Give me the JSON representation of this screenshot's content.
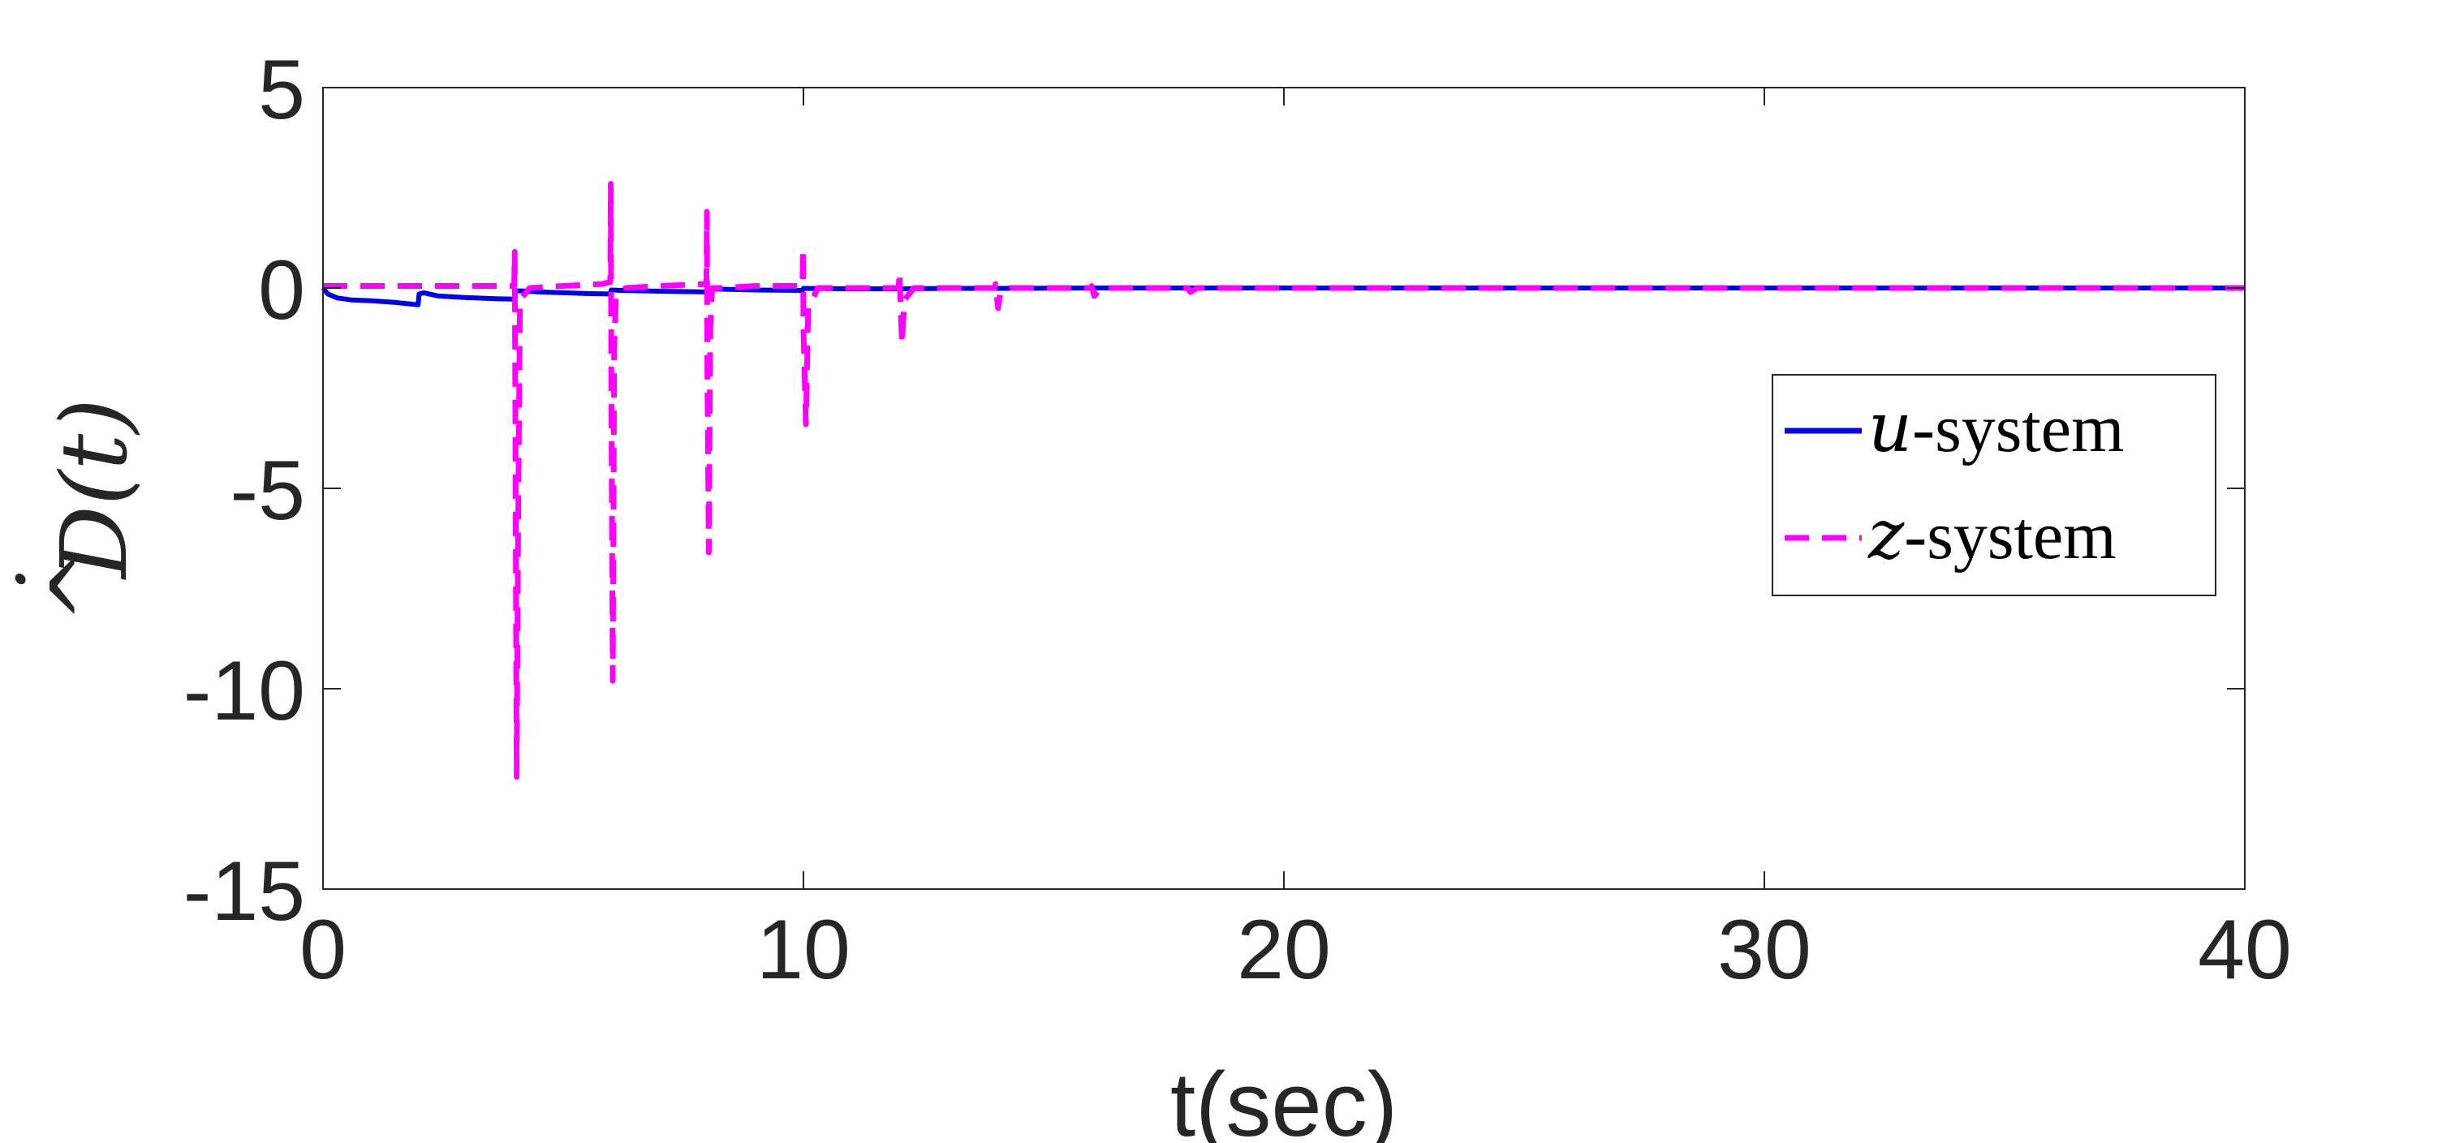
{
  "chart_data": {
    "type": "line",
    "xlabel": "t(sec)",
    "ylabel": "D̂(t)",
    "ylabel_parts": {
      "var": "D",
      "hat": "^",
      "dot": "˙",
      "arg": "(t)"
    },
    "xlim": [
      0,
      40
    ],
    "ylim": [
      -15,
      5
    ],
    "xticks": [
      0,
      10,
      20,
      30,
      40
    ],
    "xtick_labels": [
      "0",
      "10",
      "20",
      "30",
      "40"
    ],
    "yticks": [
      5,
      0,
      -5,
      -10,
      -15
    ],
    "ytick_labels": [
      "5",
      "0",
      "-5",
      "-10",
      "-15"
    ],
    "grid": false,
    "legend_position": "right",
    "series": [
      {
        "name": "u-system",
        "legend_var": "u",
        "legend_suffix": "-system",
        "color": "#0000ee",
        "dash": "solid",
        "x": [
          0,
          0.1,
          0.3,
          0.6,
          1.0,
          1.5,
          1.98,
          2.0,
          2.1,
          2.4,
          3.0,
          3.6,
          3.98,
          4.0,
          4.1,
          4.5,
          5.0,
          5.5,
          5.98,
          6.0,
          6.2,
          7.0,
          7.98,
          8.0,
          8.3,
          9.0,
          9.98,
          10.0,
          11.0,
          12.0,
          13.0,
          14.0,
          16.0,
          20.0,
          25.0,
          30.0,
          35.0,
          40.0
        ],
        "y": [
          0,
          -0.15,
          -0.25,
          -0.3,
          -0.32,
          -0.36,
          -0.42,
          -0.15,
          -0.12,
          -0.2,
          -0.24,
          -0.27,
          -0.28,
          -0.08,
          -0.07,
          -0.1,
          -0.12,
          -0.14,
          -0.15,
          -0.05,
          -0.06,
          -0.08,
          -0.1,
          -0.02,
          -0.03,
          -0.05,
          -0.06,
          -0.01,
          -0.02,
          -0.02,
          -0.01,
          -0.01,
          0,
          0,
          0,
          0,
          0,
          0
        ]
      },
      {
        "name": "z-system",
        "legend_var": "z",
        "legend_suffix": "-system",
        "color": "#ff00ff",
        "dash": "dashed",
        "x": [
          0,
          1.0,
          2.0,
          3.0,
          3.98,
          3.99,
          4.0,
          4.03,
          4.06,
          4.1,
          4.3,
          5.0,
          5.8,
          5.98,
          5.99,
          6.0,
          6.03,
          6.06,
          6.1,
          6.3,
          7.0,
          7.98,
          7.99,
          8.0,
          8.03,
          8.06,
          8.1,
          8.3,
          9.0,
          9.98,
          9.99,
          10.0,
          10.05,
          10.1,
          10.3,
          11.0,
          11.98,
          12.0,
          12.05,
          12.1,
          12.3,
          13.0,
          13.98,
          14.0,
          14.05,
          14.1,
          14.3,
          15.0,
          15.98,
          16.0,
          16.05,
          16.2,
          17.0,
          18.0,
          18.05,
          18.2,
          20.0,
          25.0,
          30.0,
          35.0,
          40.0
        ],
        "y": [
          0.05,
          0.05,
          0.05,
          0.05,
          0.05,
          0.9,
          -2,
          -12.2,
          -6,
          -0.3,
          0,
          0.05,
          0.1,
          0.15,
          2.6,
          -2,
          -9.8,
          -1.5,
          -0.2,
          0,
          0.05,
          0.1,
          1.9,
          -2,
          -6.6,
          -1,
          0,
          0,
          0.05,
          0.05,
          1.0,
          -1,
          -3.4,
          -0.5,
          0,
          0,
          0,
          0.4,
          -1.4,
          -0.3,
          0,
          0,
          0,
          0.1,
          -0.5,
          -0.1,
          0,
          0,
          0,
          0.05,
          -0.2,
          0,
          0,
          0,
          -0.1,
          0,
          0,
          0,
          0,
          0,
          0
        ]
      }
    ]
  }
}
